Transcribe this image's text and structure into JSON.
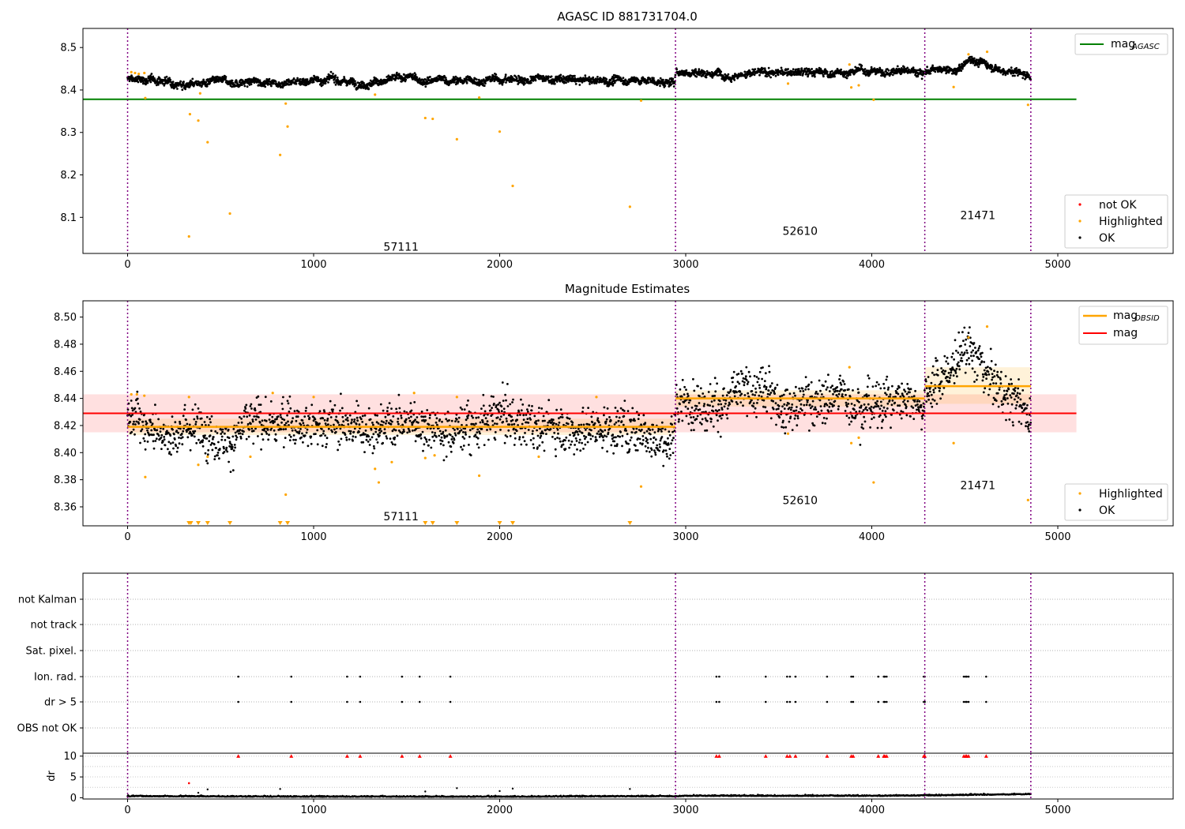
{
  "chart_data": [
    {
      "type": "scatter",
      "title": "AGASC ID 881731704.0",
      "xlim": [
        -240,
        5620
      ],
      "ylim": [
        8.015,
        8.545
      ],
      "x_ticks": [
        0,
        1000,
        2000,
        3000,
        4000,
        5000
      ],
      "y_ticks": [
        8.1,
        8.2,
        8.3,
        8.4,
        8.5
      ],
      "y_tick_labels": [
        "8.1",
        "8.2",
        "8.3",
        "8.4",
        "8.5"
      ],
      "grid": false,
      "obsid_boundaries": [
        0,
        2945,
        4285,
        4855
      ],
      "obsid_labels": [
        {
          "text": "57111",
          "x": 1470,
          "y": 8.031
        },
        {
          "text": "52610",
          "x": 3615,
          "y": 8.068
        },
        {
          "text": "21471",
          "x": 4570,
          "y": 8.105
        }
      ],
      "legend_top": {
        "placement": "top-right",
        "entries": [
          {
            "label": "mag",
            "sub": "AGASC",
            "color": "#008000"
          }
        ]
      },
      "legend_bottom": {
        "placement": "lower-right",
        "entries": [
          {
            "label": "not OK",
            "color": "#ff0000"
          },
          {
            "label": "Highlighted",
            "color": "#ffa500"
          },
          {
            "label": "OK",
            "color": "#000000"
          }
        ]
      },
      "series": [
        {
          "name": "mag",
          "sub": "AGASC",
          "kind": "hline",
          "value": 8.378,
          "xrange": [
            -240,
            5100
          ],
          "color": "#008000"
        },
        {
          "name": "OK",
          "kind": "points",
          "color": "#000000",
          "points": [
            [
              0,
              8.425
            ],
            [
              250,
              8.42
            ],
            [
              500,
              8.415
            ],
            [
              750,
              8.42
            ],
            [
              1000,
              8.425
            ],
            [
              1250,
              8.42
            ],
            [
              1500,
              8.425
            ],
            [
              1750,
              8.42
            ],
            [
              2000,
              8.425
            ],
            [
              2250,
              8.425
            ],
            [
              2500,
              8.42
            ],
            [
              2750,
              8.425
            ],
            [
              2940,
              8.415
            ],
            [
              2950,
              8.445
            ],
            [
              3250,
              8.44
            ],
            [
              3500,
              8.44
            ],
            [
              3750,
              8.44
            ],
            [
              4000,
              8.445
            ],
            [
              4280,
              8.445
            ],
            [
              4290,
              8.445
            ],
            [
              4450,
              8.44
            ],
            [
              4530,
              8.475
            ],
            [
              4600,
              8.465
            ],
            [
              4700,
              8.45
            ],
            [
              4850,
              8.435
            ]
          ]
        },
        {
          "name": "Highlighted",
          "kind": "points",
          "color": "#ffa500",
          "points": [
            [
              20,
              8.442
            ],
            [
              40,
              8.44
            ],
            [
              60,
              8.438
            ],
            [
              90,
              8.44
            ],
            [
              95,
              8.381
            ],
            [
              330,
              8.055
            ],
            [
              335,
              8.343
            ],
            [
              380,
              8.328
            ],
            [
              390,
              8.392
            ],
            [
              430,
              8.277
            ],
            [
              550,
              8.109
            ],
            [
              820,
              8.247
            ],
            [
              850,
              8.368
            ],
            [
              860,
              8.314
            ],
            [
              1330,
              8.389
            ],
            [
              1600,
              8.334
            ],
            [
              1640,
              8.332
            ],
            [
              1770,
              8.284
            ],
            [
              1890,
              8.382
            ],
            [
              2000,
              8.302
            ],
            [
              2070,
              8.174
            ],
            [
              2700,
              8.125
            ],
            [
              2760,
              8.375
            ],
            [
              3550,
              8.415
            ],
            [
              3880,
              8.46
            ],
            [
              3890,
              8.406
            ],
            [
              3930,
              8.411
            ],
            [
              4010,
              8.377
            ],
            [
              4440,
              8.407
            ],
            [
              4520,
              8.484
            ],
            [
              4620,
              8.49
            ],
            [
              4840,
              8.365
            ]
          ]
        },
        {
          "name": "not OK",
          "kind": "points",
          "color": "#ff0000",
          "points": []
        }
      ]
    },
    {
      "type": "scatter",
      "title": "Magnitude Estimates",
      "xlim": [
        -240,
        5620
      ],
      "ylim": [
        8.346,
        8.512
      ],
      "x_ticks": [
        0,
        1000,
        2000,
        3000,
        4000,
        5000
      ],
      "y_ticks": [
        8.36,
        8.38,
        8.4,
        8.42,
        8.44,
        8.46,
        8.48,
        8.5
      ],
      "y_tick_labels": [
        "8.36",
        "8.38",
        "8.40",
        "8.42",
        "8.44",
        "8.46",
        "8.48",
        "8.50"
      ],
      "grid": false,
      "obsid_boundaries": [
        0,
        2945,
        4285,
        4855
      ],
      "obsid_labels": [
        {
          "text": "57111",
          "x": 1470,
          "y": 8.353
        },
        {
          "text": "52610",
          "x": 3615,
          "y": 8.365
        },
        {
          "text": "21471",
          "x": 4570,
          "y": 8.376
        }
      ],
      "legend_top": {
        "placement": "top-right",
        "entries": [
          {
            "label": "mag",
            "sub": "OBSID",
            "color": "#ffa500"
          },
          {
            "label": "mag",
            "sub": "",
            "color": "#ff0000"
          }
        ]
      },
      "legend_bottom": {
        "placement": "lower-right",
        "entries": [
          {
            "label": "Highlighted",
            "color": "#ffa500"
          },
          {
            "label": "OK",
            "color": "#000000"
          }
        ]
      },
      "mag_band": {
        "value": 8.429,
        "low": 8.415,
        "high": 8.443,
        "xrange": [
          -240,
          5100
        ],
        "color": "#ff0000"
      },
      "obsid_mags": [
        {
          "x0": 0,
          "x1": 2945,
          "value": 8.419,
          "low": 8.413,
          "high": 8.425
        },
        {
          "x0": 2945,
          "x1": 4285,
          "value": 8.44,
          "low": 8.434,
          "high": 8.446
        },
        {
          "x0": 4285,
          "x1": 4855,
          "value": 8.449,
          "low": 8.436,
          "high": 8.463
        }
      ],
      "series": [
        {
          "name": "OK",
          "kind": "points",
          "color": "#000000",
          "points": [
            [
              0,
              8.425
            ],
            [
              250,
              8.42
            ],
            [
              500,
              8.415
            ],
            [
              750,
              8.42
            ],
            [
              1000,
              8.425
            ],
            [
              1250,
              8.42
            ],
            [
              1500,
              8.425
            ],
            [
              1750,
              8.42
            ],
            [
              2000,
              8.425
            ],
            [
              2250,
              8.42
            ],
            [
              2500,
              8.42
            ],
            [
              2750,
              8.42
            ],
            [
              2940,
              8.41
            ],
            [
              2950,
              8.44
            ],
            [
              3500,
              8.44
            ],
            [
              4000,
              8.44
            ],
            [
              4280,
              8.44
            ],
            [
              4300,
              8.445
            ],
            [
              4530,
              8.475
            ],
            [
              4600,
              8.46
            ],
            [
              4700,
              8.445
            ],
            [
              4850,
              8.43
            ]
          ]
        },
        {
          "name": "Highlighted",
          "kind": "points",
          "color": "#ffa500",
          "points": [
            [
              20,
              8.443
            ],
            [
              50,
              8.443
            ],
            [
              90,
              8.442
            ],
            [
              95,
              8.382
            ],
            [
              330,
              8.441
            ],
            [
              380,
              8.391
            ],
            [
              430,
              8.397
            ],
            [
              660,
              8.397
            ],
            [
              780,
              8.444
            ],
            [
              850,
              8.369
            ],
            [
              1000,
              8.441
            ],
            [
              1330,
              8.388
            ],
            [
              1350,
              8.378
            ],
            [
              1420,
              8.393
            ],
            [
              1540,
              8.444
            ],
            [
              1600,
              8.396
            ],
            [
              1650,
              8.398
            ],
            [
              1770,
              8.441
            ],
            [
              1890,
              8.383
            ],
            [
              2210,
              8.397
            ],
            [
              2520,
              8.441
            ],
            [
              2760,
              8.375
            ],
            [
              3550,
              8.414
            ],
            [
              3880,
              8.463
            ],
            [
              3890,
              8.407
            ],
            [
              3930,
              8.411
            ],
            [
              4010,
              8.378
            ],
            [
              4440,
              8.407
            ],
            [
              4520,
              8.485
            ],
            [
              4620,
              8.493
            ],
            [
              4840,
              8.365
            ]
          ]
        },
        {
          "name": "below axis",
          "kind": "markers",
          "color": "#ffa500",
          "x": [
            330,
            340,
            380,
            430,
            550,
            820,
            860,
            1600,
            1640,
            1770,
            2000,
            2070,
            2700
          ]
        }
      ]
    },
    {
      "type": "scatter",
      "title": "",
      "xlim": [
        -240,
        5620
      ],
      "categories": [
        "not Kalman",
        "not track",
        "Sat. pixel.",
        "Ion. rad.",
        "dr > 5",
        "OBS not OK"
      ],
      "obsid_boundaries": [
        0,
        2945,
        4285,
        4855
      ],
      "flags": {
        "Ion. rad.": [
          595,
          880,
          1180,
          1250,
          1475,
          1570,
          1735,
          3165,
          3180,
          3430,
          3545,
          3560,
          3590,
          3760,
          3890,
          3900,
          4035,
          4065,
          4070,
          4080,
          4280,
          4285,
          4495,
          4505,
          4510,
          4520,
          4615
        ],
        "dr > 5": [
          595,
          880,
          1180,
          1250,
          1475,
          1570,
          1735,
          3165,
          3180,
          3430,
          3545,
          3560,
          3590,
          3760,
          3890,
          3900,
          4035,
          4065,
          4070,
          4080,
          4280,
          4285,
          4495,
          4505,
          4510,
          4520,
          4615
        ]
      }
    },
    {
      "type": "scatter",
      "title": "",
      "ylabel": "dr",
      "xlim": [
        -240,
        5620
      ],
      "ylim": [
        -0.3,
        10.7
      ],
      "x_ticks": [
        0,
        1000,
        2000,
        3000,
        4000,
        5000
      ],
      "y_ticks": [
        0,
        5,
        10
      ],
      "y_tick_labels": [
        "0",
        "5",
        "10"
      ],
      "obsid_boundaries": [
        0,
        2945,
        4285,
        4855
      ],
      "clipped_at": 10,
      "clipped_x": [
        595,
        880,
        1180,
        1250,
        1475,
        1570,
        1735,
        3165,
        3180,
        3430,
        3545,
        3560,
        3590,
        3760,
        3890,
        3900,
        4035,
        4065,
        4070,
        4080,
        4280,
        4285,
        4495,
        4505,
        4510,
        4520,
        4615
      ],
      "series": [
        {
          "name": "dr",
          "kind": "points",
          "color": "#000000",
          "points": [
            [
              0,
              0.3
            ],
            [
              1000,
              0.2
            ],
            [
              2000,
              0.2
            ],
            [
              2940,
              0.3
            ],
            [
              3000,
              0.4
            ],
            [
              4000,
              0.4
            ],
            [
              4300,
              0.5
            ],
            [
              4850,
              0.8
            ]
          ]
        },
        {
          "name": "outliers",
          "kind": "points",
          "color": "#000000",
          "points": [
            [
              380,
              1.2
            ],
            [
              430,
              2.0
            ],
            [
              820,
              2.1
            ],
            [
              1600,
              1.5
            ],
            [
              1770,
              2.3
            ],
            [
              2000,
              1.6
            ],
            [
              2070,
              2.2
            ],
            [
              2700,
              2.1
            ]
          ]
        },
        {
          "name": "outliers-red",
          "kind": "points",
          "color": "#ff0000",
          "points": [
            [
              330,
              3.5
            ]
          ]
        }
      ]
    }
  ]
}
